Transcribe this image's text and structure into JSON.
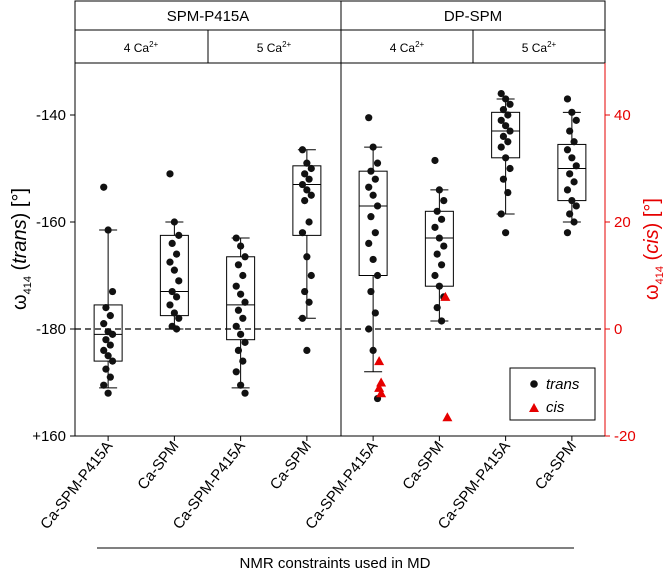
{
  "colors": {
    "left_axis": "#000000",
    "right_axis": "#e60000",
    "trans": "#111111",
    "cis": "#e60000"
  },
  "header": {
    "groups": [
      "SPM-P415A",
      "DP-SPM"
    ],
    "subgroups": [
      {
        "main": "4 Ca",
        "sup": "2+"
      },
      {
        "main": "5 Ca",
        "sup": "2+"
      },
      {
        "main": "4 Ca",
        "sup": "2+"
      },
      {
        "main": "5 Ca",
        "sup": "2+"
      }
    ]
  },
  "axes": {
    "left_label_main": "ω",
    "left_label_sub": "414",
    "left_label_paren_open": " (",
    "left_label_italic": "trans",
    "left_label_close": ") [°]",
    "right_label_main": "ω",
    "right_label_sub": "414",
    "right_label_paren_open": " (",
    "right_label_italic": "cis",
    "right_label_close": ") [°]",
    "xlabel": "NMR constraints used in MD"
  },
  "legend": {
    "trans": "trans",
    "cis": "cis"
  },
  "chart_data": {
    "type": "box",
    "categories": [
      "Ca-SPM-P415A",
      "Ca-SPM",
      "Ca-SPM-P415A",
      "Ca-SPM",
      "Ca-SPM-P415A",
      "Ca-SPM",
      "Ca-SPM-P415A",
      "Ca-SPM"
    ],
    "left_axis": {
      "ticks": [
        -140,
        -160,
        -180,
        160
      ],
      "tick_labels": [
        "-140",
        "-160",
        "-180",
        "+160"
      ],
      "range_top": -128,
      "range_bottom": 160,
      "note": "angles wrap past ±180; +160 equals -200"
    },
    "right_axis": {
      "ticks": [
        40,
        20,
        0,
        -20
      ],
      "range": [
        -20,
        52
      ]
    },
    "reference_line": -180,
    "boxes": [
      {
        "min": -191,
        "q1": -186,
        "median": -181,
        "q3": -175.5,
        "max": -161.5
      },
      {
        "min": -180,
        "q1": -177.5,
        "median": -173,
        "q3": -162.5,
        "max": -160
      },
      {
        "min": -191,
        "q1": -182,
        "median": -175.5,
        "q3": -166.5,
        "max": -163
      },
      {
        "min": -178,
        "q1": -162.5,
        "median": -153,
        "q3": -149.5,
        "max": -146.5
      },
      {
        "min": -188,
        "q1": -170,
        "median": -157,
        "q3": -150.5,
        "max": -146
      },
      {
        "min": -178.5,
        "q1": -172,
        "median": -163,
        "q3": -158,
        "max": -154
      },
      {
        "min": -158.5,
        "q1": -148,
        "median": -143,
        "q3": -139.5,
        "max": -137
      },
      {
        "min": -160,
        "q1": -156,
        "median": -150,
        "q3": -145.5,
        "max": -139.5
      }
    ],
    "series": [
      {
        "name": "trans",
        "points": [
          [
            [
              -153.5
            ],
            [
              -161.5
            ],
            [
              -173
            ],
            [
              -176
            ],
            [
              -177.5
            ],
            [
              -179
            ],
            [
              -180.5
            ],
            [
              -181
            ],
            [
              -182
            ],
            [
              -183
            ],
            [
              -184
            ],
            [
              -185
            ],
            [
              -186
            ],
            [
              -187.5
            ],
            [
              -189
            ],
            [
              -190.5
            ],
            [
              -192
            ]
          ],
          [
            [
              -151
            ],
            [
              -160
            ],
            [
              -162.5
            ],
            [
              -164
            ],
            [
              -166
            ],
            [
              -167.5
            ],
            [
              -169
            ],
            [
              -171
            ],
            [
              -173
            ],
            [
              -174
            ],
            [
              -175.5
            ],
            [
              -177
            ],
            [
              -178
            ],
            [
              -179.5
            ],
            [
              -180
            ]
          ],
          [
            [
              -163
            ],
            [
              -164.5
            ],
            [
              -166.5
            ],
            [
              -168
            ],
            [
              -170
            ],
            [
              -172
            ],
            [
              -173.5
            ],
            [
              -175
            ],
            [
              -176.5
            ],
            [
              -178
            ],
            [
              -179.5
            ],
            [
              -181
            ],
            [
              -182.5
            ],
            [
              -184
            ],
            [
              -186
            ],
            [
              -188
            ],
            [
              -190.5
            ],
            [
              -192
            ]
          ],
          [
            [
              -146.5
            ],
            [
              -149
            ],
            [
              -150
            ],
            [
              -151
            ],
            [
              -152
            ],
            [
              -153
            ],
            [
              -154
            ],
            [
              -155
            ],
            [
              -156
            ],
            [
              -160
            ],
            [
              -162
            ],
            [
              -166.5
            ],
            [
              -170
            ],
            [
              -173
            ],
            [
              -175
            ],
            [
              -178
            ],
            [
              -184
            ]
          ],
          [
            [
              -140.5
            ],
            [
              -146
            ],
            [
              -149
            ],
            [
              -150.5
            ],
            [
              -152
            ],
            [
              -153.5
            ],
            [
              -155
            ],
            [
              -157
            ],
            [
              -159
            ],
            [
              -162
            ],
            [
              -164
            ],
            [
              -167
            ],
            [
              -170
            ],
            [
              -173
            ],
            [
              -177
            ],
            [
              -180
            ],
            [
              -184
            ],
            [
              -193
            ]
          ],
          [
            [
              -148.5
            ],
            [
              -154
            ],
            [
              -156
            ],
            [
              -158
            ],
            [
              -159.5
            ],
            [
              -161
            ],
            [
              -163
            ],
            [
              -164.5
            ],
            [
              -166
            ],
            [
              -168
            ],
            [
              -170
            ],
            [
              -172
            ],
            [
              -174
            ],
            [
              -176
            ],
            [
              -178.5
            ]
          ],
          [
            [
              -136
            ],
            [
              -137
            ],
            [
              -138
            ],
            [
              -139
            ],
            [
              -140
            ],
            [
              -141
            ],
            [
              -142
            ],
            [
              -143
            ],
            [
              -144
            ],
            [
              -145
            ],
            [
              -146
            ],
            [
              -148
            ],
            [
              -150
            ],
            [
              -152
            ],
            [
              -154.5
            ],
            [
              -158.5
            ],
            [
              -162
            ]
          ],
          [
            [
              -137
            ],
            [
              -139.5
            ],
            [
              -141
            ],
            [
              -143
            ],
            [
              -145
            ],
            [
              -146.5
            ],
            [
              -148
            ],
            [
              -149.5
            ],
            [
              -151
            ],
            [
              -152.5
            ],
            [
              -154
            ],
            [
              -156
            ],
            [
              -157
            ],
            [
              -158.5
            ],
            [
              -160
            ],
            [
              -162
            ]
          ]
        ]
      },
      {
        "name": "cis",
        "points": [
          [],
          [],
          [],
          [],
          [
            [
              -6
            ],
            [
              -10
            ],
            [
              -11
            ],
            [
              -12
            ]
          ],
          [
            [
              6
            ],
            [
              -16.5
            ]
          ],
          [],
          []
        ]
      }
    ]
  }
}
